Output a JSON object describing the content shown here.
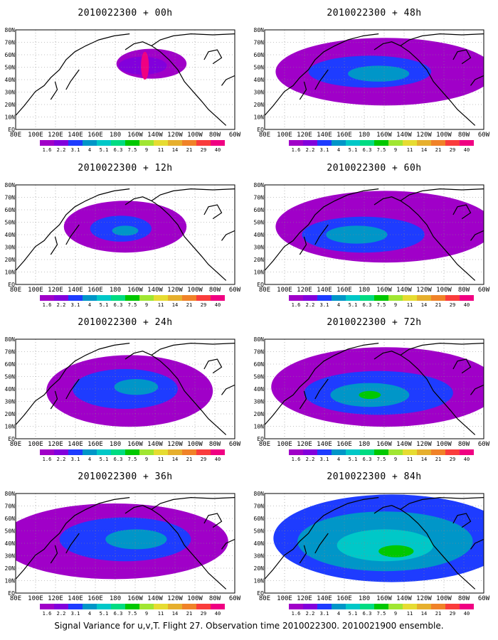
{
  "colorbar": {
    "labels": [
      "1.6",
      "2.2",
      "3.1",
      "4",
      "5.1",
      "6.3",
      "7.5",
      "9",
      "11",
      "14",
      "21",
      "29",
      "40"
    ],
    "colors": [
      "#a000c8",
      "#8200dc",
      "#1e3cff",
      "#0096c8",
      "#00c8c8",
      "#00dc82",
      "#00c800",
      "#a0e632",
      "#e6dc32",
      "#e6af2d",
      "#f08228",
      "#fa3c3c",
      "#f00082"
    ]
  },
  "axes": {
    "lon_labels": [
      "80E",
      "100E",
      "120E",
      "140E",
      "160E",
      "180",
      "160W",
      "140W",
      "120W",
      "100W",
      "80W",
      "60W"
    ],
    "lat_labels": [
      "80N",
      "70N",
      "60N",
      "50N",
      "40N",
      "30N",
      "20N",
      "10N",
      "EQ"
    ]
  },
  "panels": [
    {
      "title": "2010022300 + 00h"
    },
    {
      "title": "2010022300 + 48h"
    },
    {
      "title": "2010022300 + 12h"
    },
    {
      "title": "2010022300 + 60h"
    },
    {
      "title": "2010022300 + 24h"
    },
    {
      "title": "2010022300 + 72h"
    },
    {
      "title": "2010022300 + 36h"
    },
    {
      "title": "2010022300 + 84h"
    }
  ],
  "caption": "Signal Variance for u,v,T. Flight 27. Observation time 2010022300. 2010021900 ensemble."
}
